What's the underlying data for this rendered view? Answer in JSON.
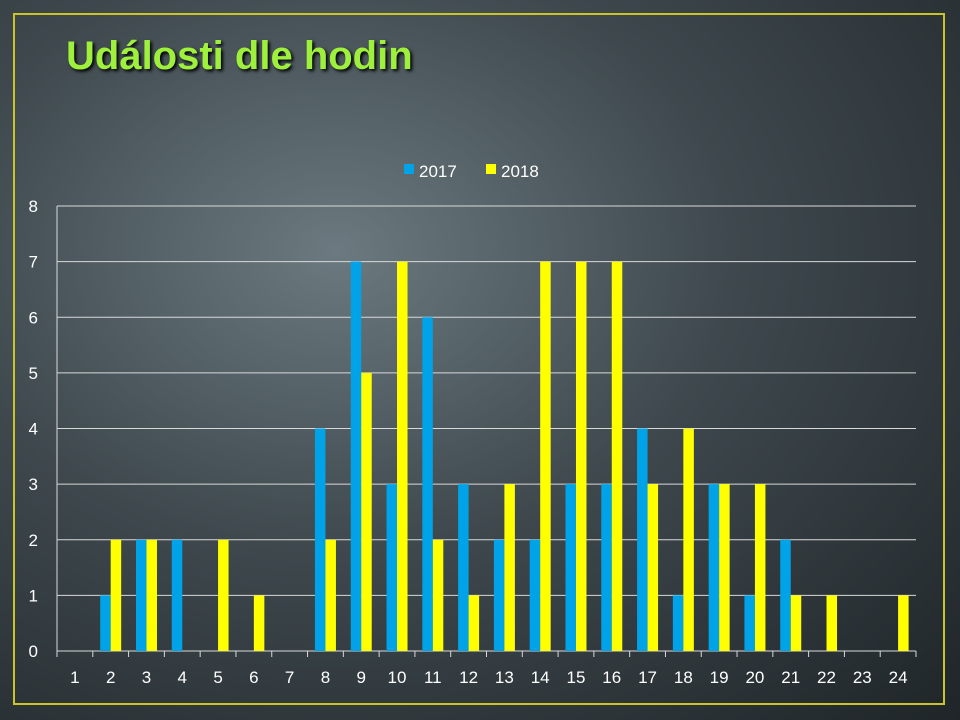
{
  "slide": {
    "title": "Události dle hodin"
  },
  "chart_data": {
    "type": "bar",
    "title": "",
    "xlabel": "",
    "ylabel": "",
    "categories": [
      "1",
      "2",
      "3",
      "4",
      "5",
      "6",
      "7",
      "8",
      "9",
      "10",
      "11",
      "12",
      "13",
      "14",
      "15",
      "16",
      "17",
      "18",
      "19",
      "20",
      "21",
      "22",
      "23",
      "24"
    ],
    "series": [
      {
        "name": "2017",
        "color": "#00a3e8",
        "values": [
          0,
          1,
          2,
          2,
          0,
          0,
          0,
          4,
          7,
          3,
          6,
          3,
          2,
          2,
          3,
          3,
          4,
          1,
          3,
          1,
          2,
          0,
          0,
          0
        ]
      },
      {
        "name": "2018",
        "color": "#ffff00",
        "values": [
          0,
          2,
          2,
          0,
          2,
          1,
          0,
          2,
          5,
          7,
          2,
          1,
          3,
          7,
          7,
          7,
          3,
          4,
          3,
          3,
          1,
          1,
          0,
          1
        ]
      }
    ],
    "ylim": [
      0,
      8
    ],
    "yticks": [
      0,
      1,
      2,
      3,
      4,
      5,
      6,
      7,
      8
    ],
    "grid": true,
    "legend_position": "top"
  }
}
